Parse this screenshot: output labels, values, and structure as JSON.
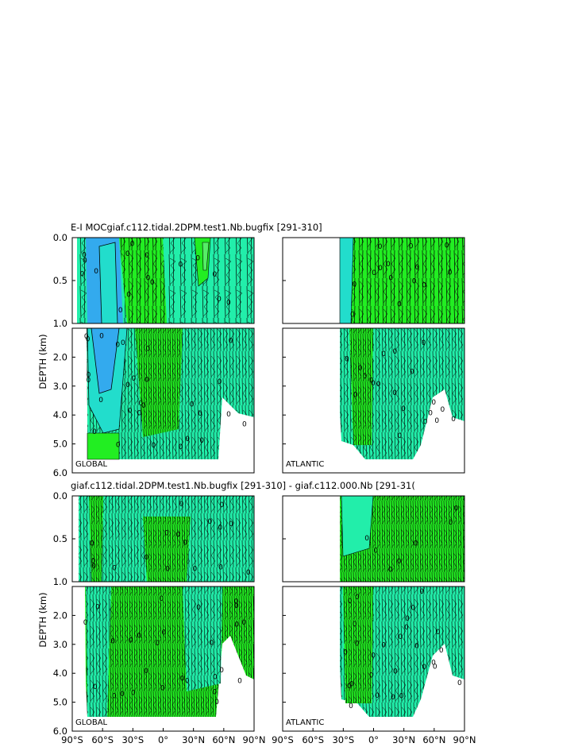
{
  "figure": {
    "title_top": "E-I  MOCgiaf.c112.tidal.2DPM.test1.Nb.bugfix  [291-310]",
    "title_bottom": "giaf.c112.tidal.2DPM.test1.Nb.bugfix  [291-310]  -  giaf.c112.000.Nb  [291-31(",
    "ylabel": "DEPTH  (km)",
    "colors": {
      "background": "#ffffff",
      "fill_green": "#22ee22",
      "fill_light_green": "#55ee66",
      "fill_teal": "#22eeaa",
      "fill_cyan": "#22ddcc",
      "fill_blue": "#33aaee",
      "contour": "#000000"
    }
  },
  "chart_data": [
    {
      "type": "heatmap",
      "title": "E-I  MOCgiaf.c112.tidal.2DPM.test1.Nb.bugfix  [291-310]",
      "basin": "GLOBAL",
      "xlabel": "",
      "ylabel": "DEPTH  (km)",
      "xlim": [
        -90,
        90
      ],
      "ylim": [
        6.0,
        0.0
      ],
      "upper_yticks": [
        "0.0",
        "0.5",
        "1.0"
      ],
      "lower_yticks": [
        "2.0",
        "3.0",
        "4.0",
        "5.0",
        "6.0"
      ],
      "contour_label": "0"
    },
    {
      "type": "heatmap",
      "title": "",
      "basin": "ATLANTIC",
      "xlabel": "",
      "ylabel": "",
      "xlim": [
        -90,
        90
      ],
      "ylim": [
        6.0,
        0.0
      ],
      "data_extent_x": [
        -34,
        90
      ],
      "contour_label": "0"
    },
    {
      "type": "heatmap",
      "title": "giaf.c112.tidal.2DPM.test1.Nb.bugfix  [291-310]  -  giaf.c112.000.Nb  [291-31(",
      "basin": "GLOBAL",
      "xlabel": "",
      "ylabel": "DEPTH  (km)",
      "xlim": [
        -90,
        90
      ],
      "ylim": [
        6.0,
        0.0
      ],
      "upper_yticks": [
        "0.0",
        "0.5",
        "1.0"
      ],
      "lower_yticks": [
        "2.0",
        "3.0",
        "4.0",
        "5.0",
        "6.0"
      ],
      "xticks": [
        "90°S",
        "60°S",
        "30°S",
        "0°",
        "30°N",
        "60°N",
        "90°N"
      ],
      "contour_label": "0"
    },
    {
      "type": "heatmap",
      "title": "",
      "basin": "ATLANTIC",
      "xlabel": "",
      "ylabel": "",
      "xlim": [
        -90,
        90
      ],
      "ylim": [
        6.0,
        0.0
      ],
      "data_extent_x": [
        -34,
        90
      ],
      "xticks": [
        "90°S",
        "60°S",
        "30°S",
        "0°",
        "30°N",
        "60°N",
        "90°N"
      ],
      "contour_label": "0"
    }
  ]
}
